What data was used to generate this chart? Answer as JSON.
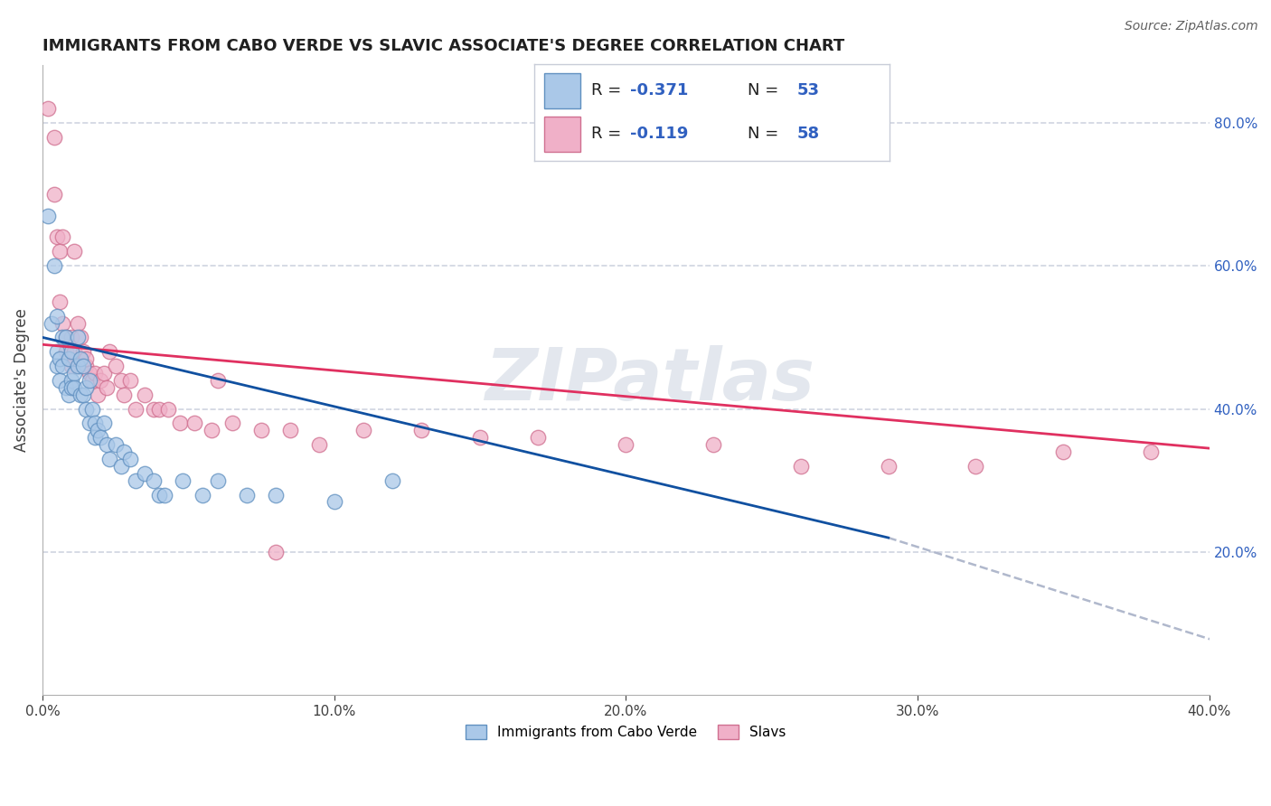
{
  "title": "IMMIGRANTS FROM CABO VERDE VS SLAVIC ASSOCIATE'S DEGREE CORRELATION CHART",
  "source_text": "Source: ZipAtlas.com",
  "ylabel": "Associate's Degree",
  "xlim": [
    0.0,
    0.4
  ],
  "ylim": [
    0.0,
    0.88
  ],
  "xtick_labels": [
    "0.0%",
    "10.0%",
    "20.0%",
    "30.0%",
    "40.0%"
  ],
  "xtick_values": [
    0.0,
    0.1,
    0.2,
    0.3,
    0.4
  ],
  "ytick_right_labels": [
    "20.0%",
    "40.0%",
    "60.0%",
    "80.0%"
  ],
  "ytick_right_values": [
    0.2,
    0.4,
    0.6,
    0.8
  ],
  "watermark": "ZIPatlas",
  "blue_scatter_x": [
    0.002,
    0.003,
    0.004,
    0.005,
    0.005,
    0.005,
    0.006,
    0.006,
    0.007,
    0.007,
    0.008,
    0.008,
    0.009,
    0.009,
    0.01,
    0.01,
    0.01,
    0.011,
    0.011,
    0.012,
    0.012,
    0.013,
    0.013,
    0.014,
    0.014,
    0.015,
    0.015,
    0.016,
    0.016,
    0.017,
    0.018,
    0.018,
    0.019,
    0.02,
    0.021,
    0.022,
    0.023,
    0.025,
    0.027,
    0.028,
    0.03,
    0.032,
    0.035,
    0.038,
    0.04,
    0.042,
    0.048,
    0.055,
    0.06,
    0.07,
    0.08,
    0.1,
    0.12
  ],
  "blue_scatter_y": [
    0.67,
    0.52,
    0.6,
    0.53,
    0.48,
    0.46,
    0.44,
    0.47,
    0.5,
    0.46,
    0.43,
    0.5,
    0.47,
    0.42,
    0.44,
    0.43,
    0.48,
    0.45,
    0.43,
    0.5,
    0.46,
    0.42,
    0.47,
    0.42,
    0.46,
    0.43,
    0.4,
    0.38,
    0.44,
    0.4,
    0.38,
    0.36,
    0.37,
    0.36,
    0.38,
    0.35,
    0.33,
    0.35,
    0.32,
    0.34,
    0.33,
    0.3,
    0.31,
    0.3,
    0.28,
    0.28,
    0.3,
    0.28,
    0.3,
    0.28,
    0.28,
    0.27,
    0.3
  ],
  "pink_scatter_x": [
    0.002,
    0.004,
    0.004,
    0.005,
    0.006,
    0.006,
    0.007,
    0.007,
    0.008,
    0.008,
    0.009,
    0.01,
    0.01,
    0.011,
    0.011,
    0.012,
    0.013,
    0.013,
    0.014,
    0.015,
    0.015,
    0.016,
    0.017,
    0.018,
    0.019,
    0.02,
    0.021,
    0.022,
    0.023,
    0.025,
    0.027,
    0.028,
    0.03,
    0.032,
    0.035,
    0.038,
    0.04,
    0.043,
    0.047,
    0.052,
    0.058,
    0.065,
    0.075,
    0.085,
    0.095,
    0.11,
    0.13,
    0.15,
    0.17,
    0.2,
    0.23,
    0.26,
    0.29,
    0.32,
    0.35,
    0.38,
    0.06,
    0.08
  ],
  "pink_scatter_y": [
    0.82,
    0.78,
    0.7,
    0.64,
    0.62,
    0.55,
    0.52,
    0.64,
    0.5,
    0.48,
    0.47,
    0.46,
    0.5,
    0.48,
    0.62,
    0.52,
    0.46,
    0.5,
    0.48,
    0.46,
    0.47,
    0.45,
    0.44,
    0.45,
    0.42,
    0.44,
    0.45,
    0.43,
    0.48,
    0.46,
    0.44,
    0.42,
    0.44,
    0.4,
    0.42,
    0.4,
    0.4,
    0.4,
    0.38,
    0.38,
    0.37,
    0.38,
    0.37,
    0.37,
    0.35,
    0.37,
    0.37,
    0.36,
    0.36,
    0.35,
    0.35,
    0.32,
    0.32,
    0.32,
    0.34,
    0.34,
    0.44,
    0.2
  ],
  "blue_line_x": [
    0.0,
    0.29
  ],
  "blue_line_y": [
    0.5,
    0.22
  ],
  "pink_line_x": [
    0.0,
    0.4
  ],
  "pink_line_y": [
    0.49,
    0.345
  ],
  "dashed_line_x": [
    0.29,
    0.5
  ],
  "dashed_line_y": [
    0.22,
    -0.05
  ],
  "blue_dot_color": "#aac8e8",
  "blue_dot_edge": "#6090c0",
  "pink_dot_color": "#f0b0c8",
  "pink_dot_edge": "#d07090",
  "blue_line_color": "#1050a0",
  "pink_line_color": "#e03060",
  "dashed_line_color": "#b0b8cc",
  "background_color": "#ffffff",
  "grid_color": "#d0d4e0",
  "title_color": "#202020",
  "source_color": "#606060",
  "legend_blue_r": "-0.371",
  "legend_blue_n": "53",
  "legend_pink_r": "-0.119",
  "legend_pink_n": "58",
  "bottom_legend": [
    {
      "label": "Immigrants from Cabo Verde",
      "color": "#aac8e8",
      "edge": "#6090c0"
    },
    {
      "label": "Slavs",
      "color": "#f0b0c8",
      "edge": "#d07090"
    }
  ]
}
